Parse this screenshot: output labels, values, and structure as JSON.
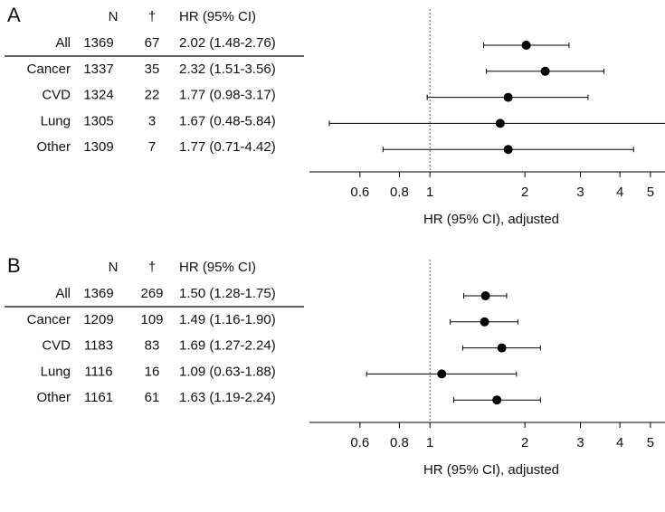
{
  "chart_data": [
    {
      "type": "forest",
      "label": "A",
      "columns": [
        "N",
        "†",
        "HR (95% CI)"
      ],
      "categories": [
        "All",
        "Cancer",
        "CVD",
        "Lung",
        "Other"
      ],
      "n": [
        1369,
        1337,
        1324,
        1305,
        1309
      ],
      "events": [
        67,
        35,
        22,
        3,
        7
      ],
      "values": [
        2.02,
        2.32,
        1.77,
        1.67,
        1.77
      ],
      "lower": [
        1.48,
        1.51,
        0.98,
        0.48,
        0.71
      ],
      "upper": [
        2.76,
        3.56,
        3.17,
        5.84,
        4.42
      ],
      "value_labels": [
        "2.02 (1.48-2.76)",
        "2.32 (1.51-3.56)",
        "1.77 (0.98-3.17)",
        "1.67 (0.48-5.84)",
        "1.77 (0.71-4.42)"
      ],
      "xlim": [
        0.415,
        5.56
      ],
      "xticks": [
        0.6,
        0.8,
        1,
        2,
        3,
        4,
        5
      ],
      "log_x": true,
      "refline": 1,
      "xlabel": "HR (95% CI), adjusted",
      "color": "#000000"
    },
    {
      "type": "forest",
      "label": "B",
      "columns": [
        "N",
        "†",
        "HR (95% CI)"
      ],
      "categories": [
        "All",
        "Cancer",
        "CVD",
        "Lung",
        "Other"
      ],
      "n": [
        1369,
        1209,
        1183,
        1116,
        1161
      ],
      "events": [
        269,
        109,
        83,
        16,
        61
      ],
      "values": [
        1.5,
        1.49,
        1.69,
        1.09,
        1.63
      ],
      "lower": [
        1.28,
        1.16,
        1.27,
        0.63,
        1.19
      ],
      "upper": [
        1.75,
        1.9,
        2.24,
        1.88,
        2.24
      ],
      "value_labels": [
        "1.50 (1.28-1.75)",
        "1.49 (1.16-1.90)",
        "1.69 (1.27-2.24)",
        "1.09 (0.63-1.88)",
        "1.63 (1.19-2.24)"
      ],
      "xlim": [
        0.415,
        5.56
      ],
      "xticks": [
        0.6,
        0.8,
        1,
        2,
        3,
        4,
        5
      ],
      "log_x": true,
      "refline": 1,
      "xlabel": "HR (95% CI), adjusted",
      "color": "#000000"
    }
  ]
}
